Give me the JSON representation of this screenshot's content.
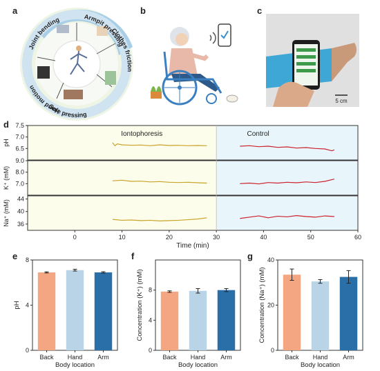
{
  "panels": {
    "a": {
      "letter": "a",
      "segments": [
        "Joint bending",
        "Armpit pressing",
        "Clothes friction",
        "Sole pressing",
        "Hand motion"
      ],
      "colors": {
        "blue_ring": "#7fb8dd",
        "green_ring": "#d8e8c8",
        "inner": "#ffffff"
      }
    },
    "b": {
      "letter": "b"
    },
    "c": {
      "letter": "c",
      "scale_bar": "5 cm"
    },
    "d": {
      "letter": "d",
      "chart_data": {
        "type": "line",
        "xlabel": "Time (min)",
        "xlim": [
          -10,
          60
        ],
        "xticks": [
          0,
          10,
          20,
          30,
          40,
          50,
          60
        ],
        "regions": [
          {
            "label": "Iontophoresis",
            "x": [
              -10,
              30
            ],
            "color": "#fdfdeb"
          },
          {
            "label": "Control",
            "x": [
              30,
              60
            ],
            "color": "#e8f6fb"
          }
        ],
        "subplots": [
          {
            "ylabel": "pH",
            "ylim": [
              6.0,
              7.5
            ],
            "yticks": [
              "7.5",
              "7.0",
              "6.5"
            ],
            "series": [
              {
                "color": "#c9a227",
                "x": [
                  8,
                  8.5,
                  9,
                  10,
                  12,
                  14,
                  16,
                  18,
                  20,
                  22,
                  24,
                  26,
                  28
                ],
                "y": [
                  6.75,
                  6.62,
                  6.7,
                  6.66,
                  6.64,
                  6.65,
                  6.62,
                  6.66,
                  6.63,
                  6.64,
                  6.62,
                  6.63,
                  6.62
                ]
              },
              {
                "color": "#cc1f2a",
                "x": [
                  35,
                  37,
                  39,
                  41,
                  43,
                  45,
                  47,
                  49,
                  51,
                  53,
                  54.5,
                  55
                ],
                "y": [
                  6.6,
                  6.62,
                  6.58,
                  6.6,
                  6.55,
                  6.57,
                  6.52,
                  6.54,
                  6.5,
                  6.48,
                  6.4,
                  6.44
                ]
              }
            ]
          },
          {
            "ylabel": "K⁺ (mM)",
            "ylim": [
              6.0,
              9.0
            ],
            "yticks": [
              "9.0",
              "8.0",
              "7.0"
            ],
            "series": [
              {
                "color": "#c9a227",
                "x": [
                  8,
                  10,
                  12,
                  14,
                  16,
                  18,
                  20,
                  22,
                  24,
                  26,
                  28
                ],
                "y": [
                  7.25,
                  7.3,
                  7.2,
                  7.22,
                  7.15,
                  7.18,
                  7.12,
                  7.1,
                  7.12,
                  7.08,
                  7.05
                ]
              },
              {
                "color": "#cc1f2a",
                "x": [
                  35,
                  37,
                  39,
                  41,
                  43,
                  45,
                  47,
                  49,
                  51,
                  53,
                  55
                ],
                "y": [
                  7.0,
                  7.05,
                  6.98,
                  7.1,
                  7.05,
                  7.12,
                  7.08,
                  7.15,
                  7.1,
                  7.2,
                  7.4
                ]
              }
            ]
          },
          {
            "ylabel": "Na⁺ (mM)",
            "ylim": [
              34,
              45
            ],
            "yticks": [
              "44",
              "40",
              "36"
            ],
            "series": [
              {
                "color": "#c9a227",
                "x": [
                  8,
                  10,
                  12,
                  14,
                  16,
                  18,
                  20,
                  22,
                  24,
                  26,
                  28
                ],
                "y": [
                  37.5,
                  37.2,
                  37.3,
                  37.1,
                  37.2,
                  37.0,
                  37.1,
                  37.2,
                  37.4,
                  37.6,
                  38.0
                ]
              },
              {
                "color": "#cc1f2a",
                "x": [
                  35,
                  37,
                  39,
                  41,
                  43,
                  45,
                  47,
                  49,
                  51,
                  53,
                  55
                ],
                "y": [
                  37.8,
                  38.2,
                  38.6,
                  38.0,
                  38.5,
                  38.3,
                  38.7,
                  38.4,
                  38.2,
                  38.6,
                  38.4
                ]
              }
            ]
          }
        ]
      }
    },
    "e": {
      "letter": "e",
      "chart_data": {
        "type": "bar",
        "categories": [
          "Back",
          "Hand",
          "Arm"
        ],
        "values": [
          6.9,
          7.1,
          6.9
        ],
        "errors": [
          0.05,
          0.08,
          0.06
        ],
        "colors": [
          "#f4a582",
          "#b8d4e6",
          "#2a6fa8"
        ],
        "xlabel": "Body location",
        "ylabel": "pH",
        "ylim": [
          0,
          8
        ],
        "yticks": [
          0,
          4,
          8
        ]
      }
    },
    "f": {
      "letter": "f",
      "chart_data": {
        "type": "bar",
        "categories": [
          "Back",
          "Hand",
          "Arm"
        ],
        "values": [
          7.8,
          7.9,
          8.0
        ],
        "errors": [
          0.1,
          0.3,
          0.2
        ],
        "colors": [
          "#f4a582",
          "#b8d4e6",
          "#2a6fa8"
        ],
        "xlabel": "Body location",
        "ylabel": "Concentration (K⁺) (mM)",
        "ylim": [
          0,
          12
        ],
        "yticks": [
          0,
          4,
          8
        ]
      }
    },
    "g": {
      "letter": "g",
      "chart_data": {
        "type": "bar",
        "categories": [
          "Back",
          "Hand",
          "Arm"
        ],
        "values": [
          33.5,
          30.5,
          32.5
        ],
        "errors": [
          2.5,
          0.8,
          2.8
        ],
        "colors": [
          "#f4a582",
          "#b8d4e6",
          "#2a6fa8"
        ],
        "xlabel": "Body location",
        "ylabel": "Concentration (Na⁺) (mM)",
        "ylim": [
          0,
          40
        ],
        "yticks": [
          0,
          20,
          40
        ]
      }
    }
  }
}
